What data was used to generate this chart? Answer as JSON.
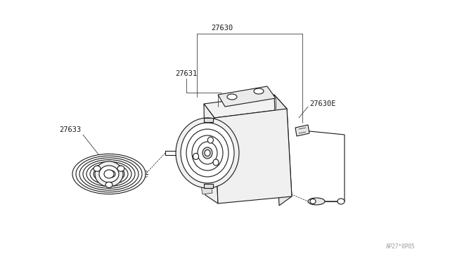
{
  "bg_color": "#ffffff",
  "lc": "#1a1a1a",
  "lw": 0.8,
  "tlw": 0.5,
  "watermark": "AP27*0P05",
  "fig_width": 6.4,
  "fig_height": 3.72,
  "dpi": 100
}
